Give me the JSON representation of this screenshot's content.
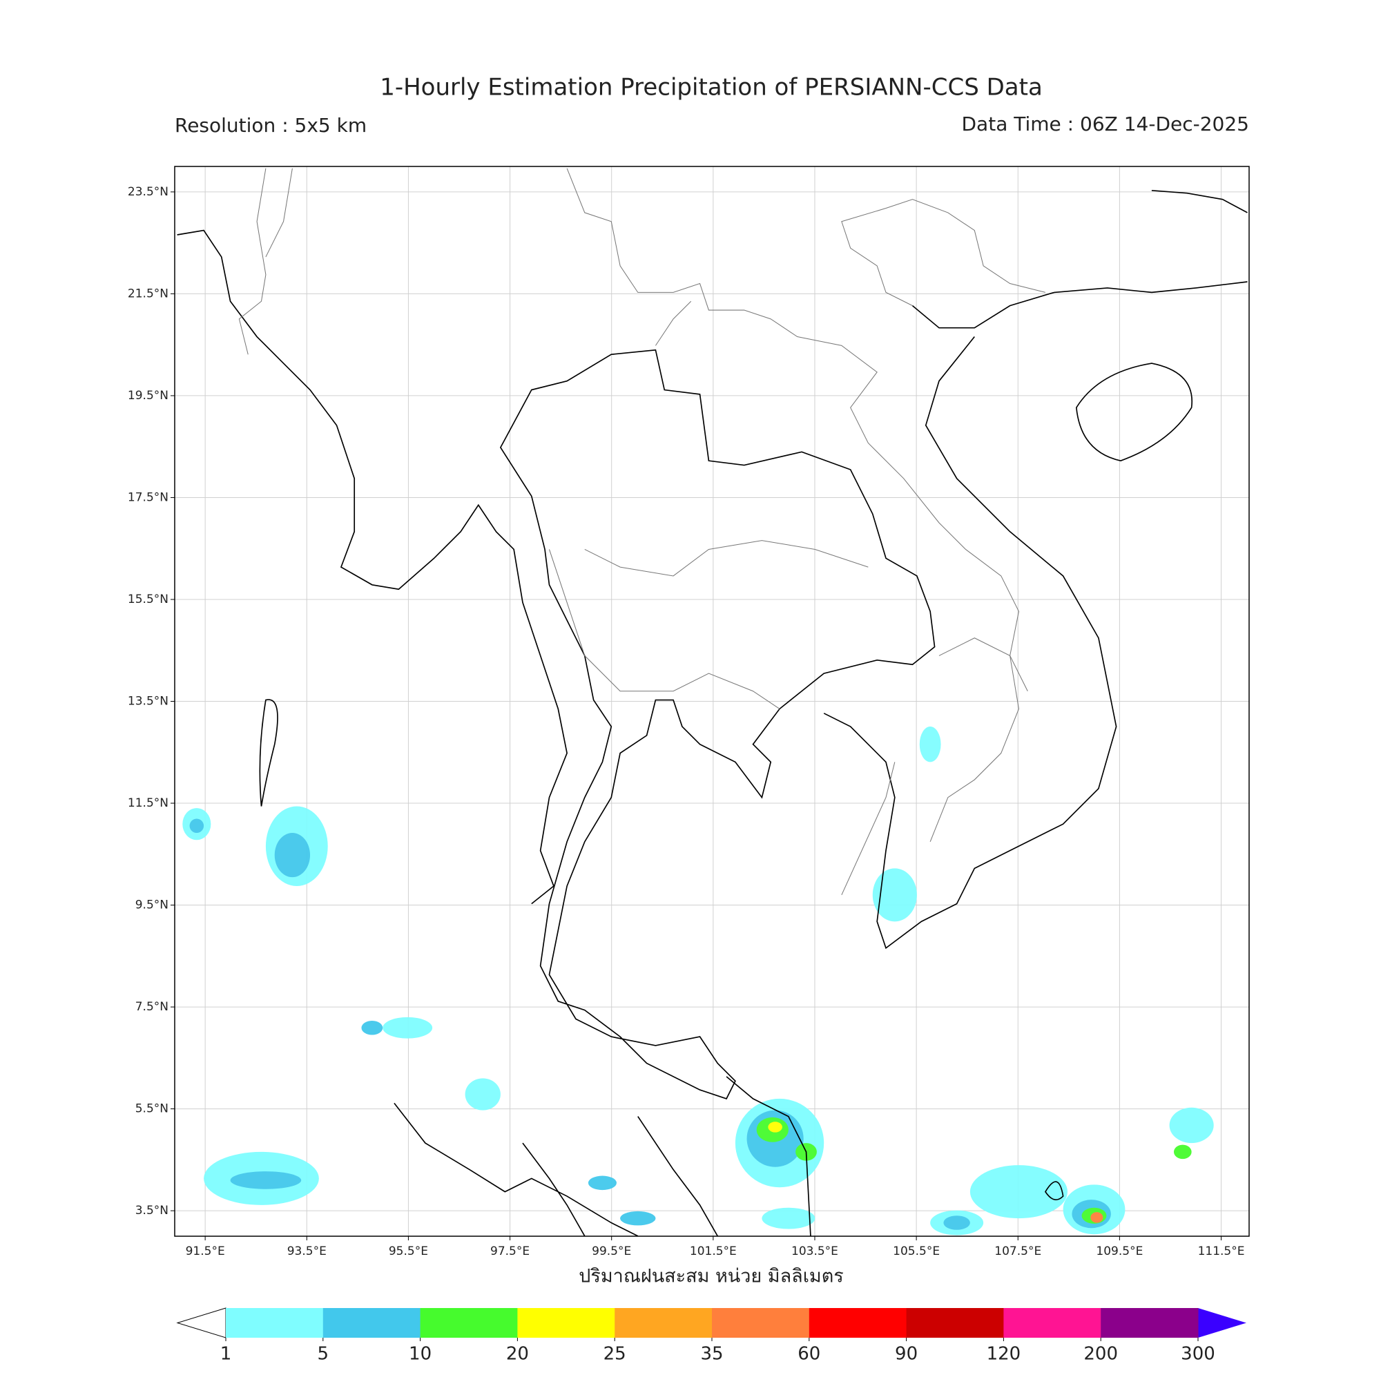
{
  "title": "1-Hourly Estimation Precipitation of PERSIANN-CCS Data",
  "subtitle_left": "Resolution : 5x5 km",
  "subtitle_right": "Data Time : 06Z 14-Dec-2025",
  "map": {
    "xlim": [
      90.9,
      112.05
    ],
    "ylim": [
      3.0,
      24.0
    ],
    "xticks": [
      {
        "value": 91.5,
        "label": "91.5°E"
      },
      {
        "value": 93.5,
        "label": "93.5°E"
      },
      {
        "value": 95.5,
        "label": "95.5°E"
      },
      {
        "value": 97.5,
        "label": "97.5°E"
      },
      {
        "value": 99.5,
        "label": "99.5°E"
      },
      {
        "value": 101.5,
        "label": "101.5°E"
      },
      {
        "value": 103.5,
        "label": "103.5°E"
      },
      {
        "value": 105.5,
        "label": "105.5°E"
      },
      {
        "value": 107.5,
        "label": "107.5°E"
      },
      {
        "value": 109.5,
        "label": "109.5°E"
      },
      {
        "value": 111.5,
        "label": "111.5°E"
      }
    ],
    "yticks": [
      {
        "value": 3.5,
        "label": "3.5°N"
      },
      {
        "value": 5.5,
        "label": "5.5°N"
      },
      {
        "value": 7.5,
        "label": "7.5°N"
      },
      {
        "value": 9.5,
        "label": "9.5°N"
      },
      {
        "value": 11.5,
        "label": "11.5°N"
      },
      {
        "value": 13.5,
        "label": "13.5°N"
      },
      {
        "value": 15.5,
        "label": "15.5°N"
      },
      {
        "value": 17.5,
        "label": "17.5°N"
      },
      {
        "value": 19.5,
        "label": "19.5°N"
      },
      {
        "value": 21.5,
        "label": "21.5°N"
      },
      {
        "value": 23.5,
        "label": "23.5°N"
      }
    ],
    "grid": true,
    "xlabel": "ปริมาณฝนสะสม หน่วย มิลลิเมตร"
  },
  "colorbar": {
    "boundaries": [
      1,
      5,
      10,
      20,
      25,
      35,
      60,
      90,
      120,
      200,
      300
    ],
    "colors": [
      "#7ffdff",
      "#42c8ec",
      "#46fb2d",
      "#ffff00",
      "#ffa621",
      "#ff7f3c",
      "#ff0000",
      "#cc0000",
      "#ff1493",
      "#8b008b"
    ],
    "under_color": "#ffffff",
    "over_color": "#3a00ff"
  }
}
